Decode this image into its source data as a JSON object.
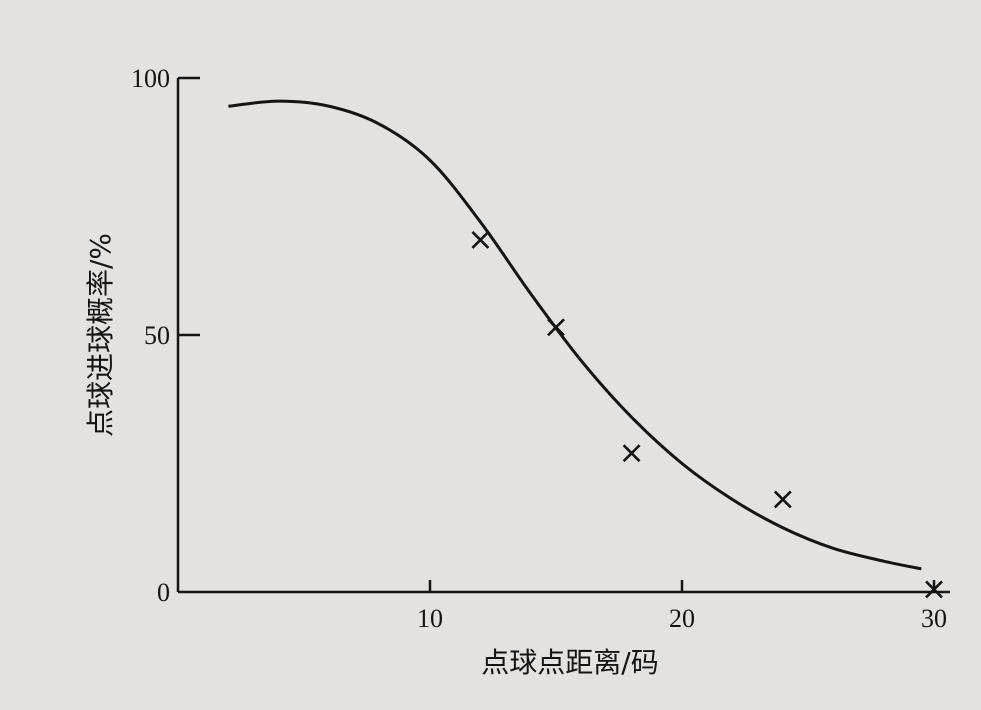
{
  "chart_data": {
    "type": "line",
    "title": "",
    "xlabel": "点球点距离/码",
    "ylabel": "点球进球概率/%",
    "xlim": [
      0,
      30
    ],
    "ylim": [
      0,
      100
    ],
    "x_ticks": [
      {
        "value": 0,
        "label": "0"
      },
      {
        "value": 10,
        "label": "10"
      },
      {
        "value": 20,
        "label": "20"
      },
      {
        "value": 30,
        "label": "30"
      }
    ],
    "y_ticks": [
      {
        "value": 50,
        "label": "50"
      },
      {
        "value": 100,
        "label": "100"
      }
    ],
    "grid": false,
    "legend": "none",
    "series": [
      {
        "kind": "curve",
        "x": [
          2,
          4,
          6,
          8,
          10,
          12,
          14,
          16,
          18,
          20,
          22,
          24,
          26,
          28,
          29.5
        ],
        "y": [
          94.5,
          95.5,
          94.5,
          91,
          84,
          72,
          58,
          45,
          34,
          25,
          18,
          12.5,
          8.5,
          6,
          4.5
        ]
      },
      {
        "kind": "markers",
        "marker": "x",
        "x": [
          12,
          15,
          18,
          24,
          30
        ],
        "y": [
          68.5,
          51.5,
          27,
          18,
          0.5
        ]
      }
    ],
    "colors": {
      "ink": "#141414",
      "paper": "#e4e2e0"
    }
  }
}
